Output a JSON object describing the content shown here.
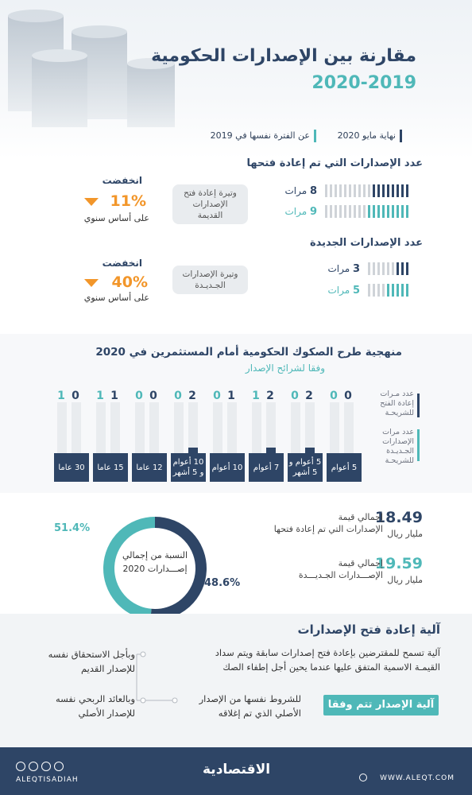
{
  "header": {
    "title": "مقارنة بين الإصدارات الحكومية",
    "years": "2020-2019"
  },
  "legend": {
    "current": "نهاية مايو 2020",
    "previous": "عن الفترة نفسها في 2019"
  },
  "reopened": {
    "title": "عدد الإصدارات التي تم إعادة فتحها",
    "rows": [
      {
        "value": "8",
        "unit": "مرات",
        "color": "#2e4566"
      },
      {
        "value": "9",
        "unit": "مرات",
        "color": "#4fb8b8"
      }
    ],
    "pill": "وتيرة إعادة فتح الإصدارات القديمة",
    "drop_label": "انخفضت",
    "pct": "11%",
    "note": "على أساس سنوي"
  },
  "new_issues": {
    "title": "عدد الإصدارات الجديدة",
    "rows": [
      {
        "value": "3",
        "unit": "مرات",
        "color": "#2e4566"
      },
      {
        "value": "5",
        "unit": "مرات",
        "color": "#4fb8b8"
      }
    ],
    "pill": "وتيرة الإصدارات الجـديـدة",
    "drop_label": "انخفضت",
    "pct": "40%",
    "note": "على أساس سنوي"
  },
  "methodology": {
    "title": "منهجية طرح الصكوك الحكومية أمام المستثمرين في 2020",
    "subtitle": "وفقا لشرائح الإصدار",
    "side_reopen": "عدد مـرات إعادة الفتح للشريحـة",
    "side_new": "عدد مرات الإصدارات الجـديـدة للشريحـة",
    "tenors": [
      {
        "label": "30 عاما",
        "reopen": "0",
        "new": "1"
      },
      {
        "label": "15 عاما",
        "reopen": "1",
        "new": "1"
      },
      {
        "label": "12 عاما",
        "reopen": "0",
        "new": "0"
      },
      {
        "label": "10 أعوام و 5 أشهر",
        "reopen": "2",
        "new": "0"
      },
      {
        "label": "10 أعوام",
        "reopen": "1",
        "new": "0"
      },
      {
        "label": "7 أعوام",
        "reopen": "2",
        "new": "1"
      },
      {
        "label": "5 أعوام و 5 أشهر",
        "reopen": "2",
        "new": "0"
      },
      {
        "label": "5 أعوام",
        "reopen": "0",
        "new": "0"
      }
    ]
  },
  "totals": {
    "reopen_value": "18.49",
    "reopen_label1": "إجمالي قيمة",
    "reopen_label2": "الإصدارات التي تم إعادة فتحها",
    "reopen_unit": "مليار ريال",
    "new_value": "19.59",
    "new_label1": "إجمالي قيمة",
    "new_label2": "الإصـــدارات الجـديـــدة",
    "new_unit": "مليار ريال"
  },
  "donut": {
    "center_line1": "النسبة من إجمالي",
    "center_line2": "إصـــدارات 2020",
    "teal_pct": "51.4%",
    "navy_pct": "48.6%",
    "teal_value": 51.4,
    "navy_value": 48.6
  },
  "mechanism": {
    "title": "آلية إعادة فتح الإصدارات",
    "description": "آلية تسمح للمقترضين بإعادة فتح إصدارات سابقة ويتم سداد القيمـة الاسمية المتفق عليها عندما يحين أجل إطفاء الصك",
    "box": "آلية الإصدار تتم وفقا",
    "point_conditions": "للشروط نفسها من الإصدار الأصلي الذي تم إغلاقه",
    "point_maturity": "وبأجل الاستحقاق نفسه للإصدار القديم",
    "point_return": "وبالعائد الربحي نفسه للإصدار الأصلي"
  },
  "footer": {
    "social": "ALEQTISADIAH",
    "logo": "الاقتصادية",
    "website": "WWW.ALEQT.COM"
  }
}
